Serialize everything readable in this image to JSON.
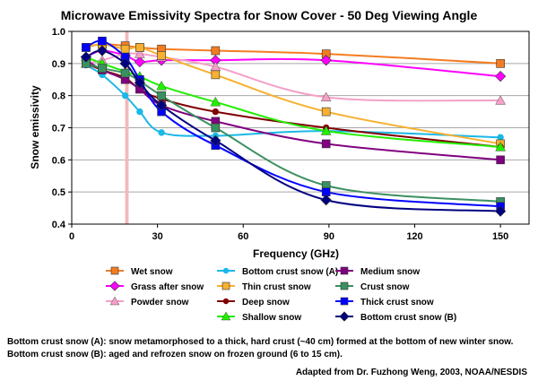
{
  "chart_data": {
    "type": "line",
    "title": "Microwave Emissivity Spectra for Snow Cover - 50 Deg Viewing Angle",
    "xlabel": "Frequency (GHz)",
    "ylabel": "Snow emissivity",
    "xlim": [
      0,
      160
    ],
    "ylim": [
      0.4,
      1.0
    ],
    "xticks": [
      0,
      30,
      60,
      90,
      120,
      150
    ],
    "yticks": [
      0.4,
      0.5,
      0.6,
      0.7,
      0.8,
      0.9,
      1.0
    ],
    "ytick_labels": [
      "0.4",
      "0.5",
      "0.6",
      "0.7",
      "0.8",
      "0.9",
      "1.0"
    ],
    "grid": "horizontal",
    "highlight_band": {
      "x": [
        18.7,
        19.9
      ],
      "color": "#f4b8b8"
    },
    "x": [
      5,
      10.65,
      18.7,
      23.8,
      31.4,
      50.3,
      89,
      150
    ],
    "series": [
      {
        "name": "Wet snow",
        "color": "#f47c20",
        "marker": "square",
        "x": [
          5,
          10.65,
          18.7,
          23.8,
          31.4,
          50.3,
          89,
          150
        ],
        "values": [
          0.95,
          0.96,
          0.955,
          0.95,
          0.945,
          0.94,
          0.93,
          0.9
        ]
      },
      {
        "name": "Grass after snow",
        "color": "#ff00ff",
        "marker": "diamond",
        "x": [
          5,
          10.65,
          18.7,
          23.8,
          31.4,
          50.3,
          89,
          150
        ],
        "values": [
          0.92,
          0.94,
          0.925,
          0.905,
          0.91,
          0.91,
          0.91,
          0.86
        ]
      },
      {
        "name": "Powder snow",
        "color": "#f4a0c8",
        "marker": "triangle",
        "x": [
          5,
          10.65,
          18.7,
          23.8,
          31.4,
          50.3,
          89,
          150
        ],
        "values": [
          0.9,
          0.91,
          0.93,
          0.93,
          0.92,
          0.89,
          0.795,
          0.785
        ]
      },
      {
        "name": "Bottom crust snow (A)",
        "color": "#1ab8e8",
        "marker": "circle",
        "x": [
          5,
          10.65,
          18.7,
          23.8,
          31.4,
          50.3,
          89,
          150
        ],
        "values": [
          0.895,
          0.865,
          0.8,
          0.75,
          0.685,
          0.675,
          0.69,
          0.67
        ]
      },
      {
        "name": "Thin crust snow",
        "color": "#f8b030",
        "marker": "square",
        "x": [
          5,
          10.65,
          18.7,
          23.8,
          31.4,
          50.3,
          89,
          150
        ],
        "values": [
          0.95,
          0.96,
          0.945,
          0.95,
          0.925,
          0.865,
          0.75,
          0.65
        ]
      },
      {
        "name": "Deep snow",
        "color": "#800000",
        "marker": "circle",
        "x": [
          5,
          10.65,
          18.7,
          23.8,
          31.4,
          50.3,
          89,
          150
        ],
        "values": [
          0.9,
          0.88,
          0.855,
          0.82,
          0.79,
          0.75,
          0.7,
          0.64
        ]
      },
      {
        "name": "Shallow snow",
        "color": "#22ee00",
        "marker": "triangle",
        "x": [
          5,
          10.65,
          18.7,
          23.8,
          31.4,
          50.3,
          89,
          150
        ],
        "values": [
          0.92,
          0.9,
          0.875,
          0.86,
          0.83,
          0.78,
          0.69,
          0.64
        ]
      },
      {
        "name": "Medium snow",
        "color": "#800080",
        "marker": "square",
        "x": [
          5,
          10.65,
          18.7,
          23.8,
          31.4,
          50.3,
          89,
          150
        ],
        "values": [
          0.91,
          0.88,
          0.85,
          0.82,
          0.77,
          0.72,
          0.65,
          0.6
        ]
      },
      {
        "name": "Crust snow",
        "color": "#3a9060",
        "marker": "square",
        "x": [
          5,
          10.65,
          18.7,
          23.8,
          31.4,
          50.3,
          89,
          150
        ],
        "values": [
          0.9,
          0.885,
          0.87,
          0.845,
          0.8,
          0.7,
          0.52,
          0.47
        ]
      },
      {
        "name": "Thick crust snow",
        "color": "#0000ff",
        "marker": "square",
        "x": [
          5,
          10.65,
          18.7,
          23.8,
          31.4,
          50.3,
          89,
          150
        ],
        "values": [
          0.95,
          0.97,
          0.92,
          0.85,
          0.75,
          0.645,
          0.5,
          0.455
        ]
      },
      {
        "name": "Bottom crust snow (B)",
        "color": "#000080",
        "marker": "diamond",
        "x": [
          5,
          10.65,
          18.7,
          23.8,
          31.4,
          50.3,
          89,
          150
        ],
        "values": [
          0.92,
          0.94,
          0.9,
          0.84,
          0.77,
          0.66,
          0.475,
          0.44
        ]
      }
    ],
    "legend_layout": "three columns below plot",
    "legend_order": [
      [
        "Wet snow",
        "Grass after snow",
        "Powder snow"
      ],
      [
        "Bottom crust snow (A)",
        "Thin crust snow",
        "Deep snow",
        "Shallow snow"
      ],
      [
        "Medium snow",
        "Crust snow",
        "Thick crust snow",
        "Bottom crust snow (B)"
      ]
    ]
  },
  "notes": {
    "line1": "Bottom crust snow (A): snow metamorphosed to a thick, hard crust (~40 cm) formed at the bottom of new winter snow.",
    "line2": "Bottom crust snow (B): aged and refrozen snow on frozen ground (6 to 15 cm).",
    "credit": "Adapted from Dr. Fuzhong Weng, 2003, NOAA/NESDIS"
  }
}
